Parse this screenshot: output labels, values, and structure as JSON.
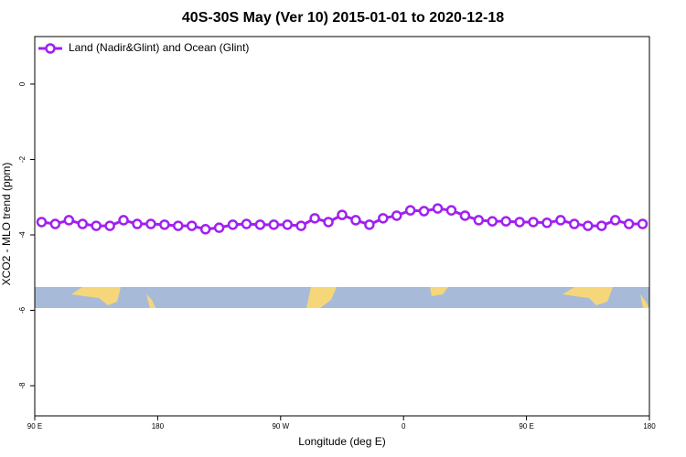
{
  "chart_data": {
    "type": "line",
    "title": "40S-30S May (Ver 10)   2015-01-01 to 2020-12-18",
    "x_label": "Longitude (deg E)",
    "y_label": "XCO2 - MLO trend (ppm)",
    "x": [
      95,
      105,
      115,
      125,
      135,
      145,
      155,
      165,
      175,
      185,
      195,
      205,
      215,
      225,
      235,
      245,
      255,
      265,
      275,
      285,
      295,
      305,
      315,
      325,
      335,
      345,
      355,
      365,
      375,
      385,
      395,
      405,
      415,
      425,
      435,
      445,
      455,
      465,
      475,
      485,
      495,
      505,
      515,
      525,
      535
    ],
    "series": [
      {
        "name": "Land (Nadir&Glint) and Ocean (Glint)",
        "color": "#a020f0",
        "values": [
          -3.66,
          -3.71,
          -3.61,
          -3.71,
          -3.76,
          -3.76,
          -3.61,
          -3.71,
          -3.71,
          -3.73,
          -3.76,
          -3.76,
          -3.85,
          -3.81,
          -3.73,
          -3.71,
          -3.73,
          -3.73,
          -3.73,
          -3.76,
          -3.56,
          -3.66,
          -3.47,
          -3.61,
          -3.73,
          -3.56,
          -3.49,
          -3.35,
          -3.37,
          -3.3,
          -3.35,
          -3.49,
          -3.61,
          -3.64,
          -3.64,
          -3.66,
          -3.66,
          -3.68,
          -3.61,
          -3.71,
          -3.76,
          -3.76,
          -3.61,
          -3.71,
          -3.71
        ]
      }
    ],
    "xlim": [
      90,
      540
    ],
    "xticks": [
      {
        "value": 90,
        "label": "90 E"
      },
      {
        "value": 180,
        "label": "180"
      },
      {
        "value": 270,
        "label": "90 W"
      },
      {
        "value": 360,
        "label": "0"
      },
      {
        "value": 450,
        "label": "90 E"
      },
      {
        "value": 540,
        "label": "180"
      }
    ],
    "ylim": [
      -8.8,
      1.26
    ],
    "yticks": [
      0,
      -2,
      -4,
      -6,
      -8
    ],
    "legend": "top-left"
  }
}
